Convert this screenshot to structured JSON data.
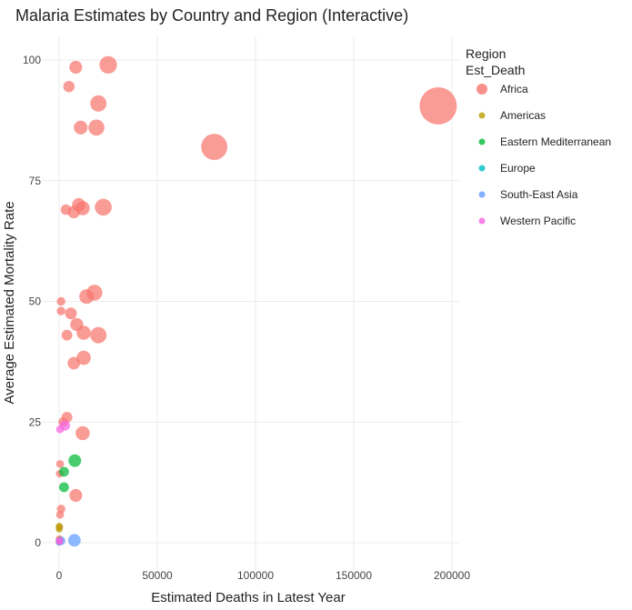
{
  "chart_data": {
    "type": "scatter",
    "title": "Malaria Estimates by Country and Region (Interactive)",
    "xlabel": "Estimated Deaths in Latest Year",
    "ylabel": "Average Estimated Mortality Rate",
    "xlim": [
      -5000,
      203000
    ],
    "ylim": [
      -10,
      104
    ],
    "x_ticks": [
      0,
      50000,
      100000,
      150000,
      200000
    ],
    "y_ticks": [
      0,
      25,
      50,
      75,
      100
    ],
    "grid": true,
    "legend": {
      "placement": "right",
      "title_lines": [
        "Region",
        "Est_Death"
      ],
      "entries": [
        "Africa",
        "Americas",
        "Eastern Mediterranean",
        "Europe",
        "South-East Asia",
        "Western Pacific"
      ]
    },
    "colors": {
      "Africa": "#F8766D",
      "Americas": "#B79F00",
      "Eastern Mediterranean": "#00BA38",
      "Europe": "#00BFC4",
      "South-East Asia": "#619CFF",
      "Western Pacific": "#F564E3"
    },
    "series": [
      {
        "name": "Africa",
        "points": [
          {
            "x": 193000,
            "y": 90.5
          },
          {
            "x": 79000,
            "y": 82
          },
          {
            "x": 25000,
            "y": 99
          },
          {
            "x": 8500,
            "y": 98.5
          },
          {
            "x": 5000,
            "y": 94.5
          },
          {
            "x": 20000,
            "y": 91
          },
          {
            "x": 11000,
            "y": 86
          },
          {
            "x": 19000,
            "y": 86
          },
          {
            "x": 3500,
            "y": 69
          },
          {
            "x": 7500,
            "y": 68.5
          },
          {
            "x": 10000,
            "y": 70
          },
          {
            "x": 12000,
            "y": 69.3
          },
          {
            "x": 22500,
            "y": 69.5
          },
          {
            "x": 1000,
            "y": 50
          },
          {
            "x": 1000,
            "y": 48
          },
          {
            "x": 6000,
            "y": 47.5
          },
          {
            "x": 9000,
            "y": 45.2
          },
          {
            "x": 14000,
            "y": 51
          },
          {
            "x": 18000,
            "y": 51.8
          },
          {
            "x": 4000,
            "y": 43
          },
          {
            "x": 12500,
            "y": 43.5
          },
          {
            "x": 20000,
            "y": 43
          },
          {
            "x": 7500,
            "y": 37.2
          },
          {
            "x": 12500,
            "y": 38.3
          },
          {
            "x": 4000,
            "y": 26
          },
          {
            "x": 2000,
            "y": 25
          },
          {
            "x": 12000,
            "y": 22.7
          },
          {
            "x": 500,
            "y": 16.3
          },
          {
            "x": 8500,
            "y": 9.8
          },
          {
            "x": 1000,
            "y": 7
          },
          {
            "x": 500,
            "y": 5.8
          },
          {
            "x": 300,
            "y": 14.3
          },
          {
            "x": 200,
            "y": 3.2
          },
          {
            "x": 200,
            "y": 0.8
          }
        ]
      },
      {
        "name": "Americas",
        "points": [
          {
            "x": 100,
            "y": 3.4
          },
          {
            "x": 50,
            "y": 2.8
          },
          {
            "x": 300,
            "y": 0.5
          },
          {
            "x": 100,
            "y": 0.2
          }
        ]
      },
      {
        "name": "Eastern Mediterranean",
        "points": [
          {
            "x": 8000,
            "y": 17
          },
          {
            "x": 2500,
            "y": 14.7
          },
          {
            "x": 2500,
            "y": 11.5
          },
          {
            "x": 100,
            "y": 0.3
          }
        ]
      },
      {
        "name": "Europe",
        "points": [
          {
            "x": 50,
            "y": 0.1
          }
        ]
      },
      {
        "name": "South-East Asia",
        "points": [
          {
            "x": 7800,
            "y": 0.5
          },
          {
            "x": 1000,
            "y": 0.4
          },
          {
            "x": 200,
            "y": 0.3
          }
        ]
      },
      {
        "name": "Western Pacific",
        "points": [
          {
            "x": 3000,
            "y": 24.3
          },
          {
            "x": 500,
            "y": 23.5
          },
          {
            "x": 200,
            "y": 0.4
          },
          {
            "x": 100,
            "y": 0.2
          }
        ]
      }
    ]
  }
}
